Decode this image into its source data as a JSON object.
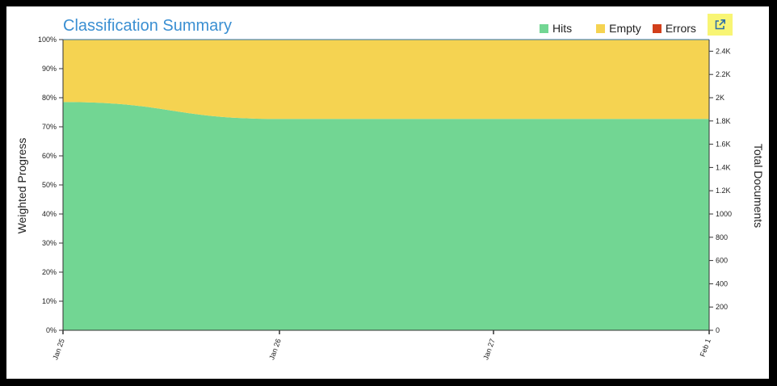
{
  "chart_data": {
    "type": "area",
    "stacked": true,
    "title": "Classification Summary",
    "x": [
      "Jan 25",
      "Jan 26",
      "Jan 27",
      "Feb 1"
    ],
    "series": [
      {
        "name": "Hits",
        "color": "#72d693",
        "values": [
          78.5,
          72.7,
          72.7,
          72.7
        ]
      },
      {
        "name": "Empty",
        "color": "#f5d351",
        "values": [
          21.5,
          27.3,
          27.3,
          27.3
        ]
      },
      {
        "name": "Errors",
        "color": "#d23f1b",
        "values": [
          0,
          0,
          0,
          0
        ]
      }
    ],
    "ylabel": "Weighted Progress",
    "ylim": [
      0,
      100
    ],
    "yticks": [
      "0%",
      "10%",
      "20%",
      "30%",
      "40%",
      "50%",
      "60%",
      "70%",
      "80%",
      "90%",
      "100%"
    ],
    "y2label": "Total Documents",
    "y2lim": [
      0,
      2500
    ],
    "y2ticks": [
      "0",
      "200",
      "400",
      "600",
      "800",
      "1000",
      "1.2K",
      "1.4K",
      "1.6K",
      "1.8K",
      "2K",
      "2.2K",
      "2.4K"
    ],
    "legend": "top-right",
    "grid": false
  },
  "toolbar": {
    "export_icon": "external-link-icon",
    "export_color": "#f8f574"
  }
}
